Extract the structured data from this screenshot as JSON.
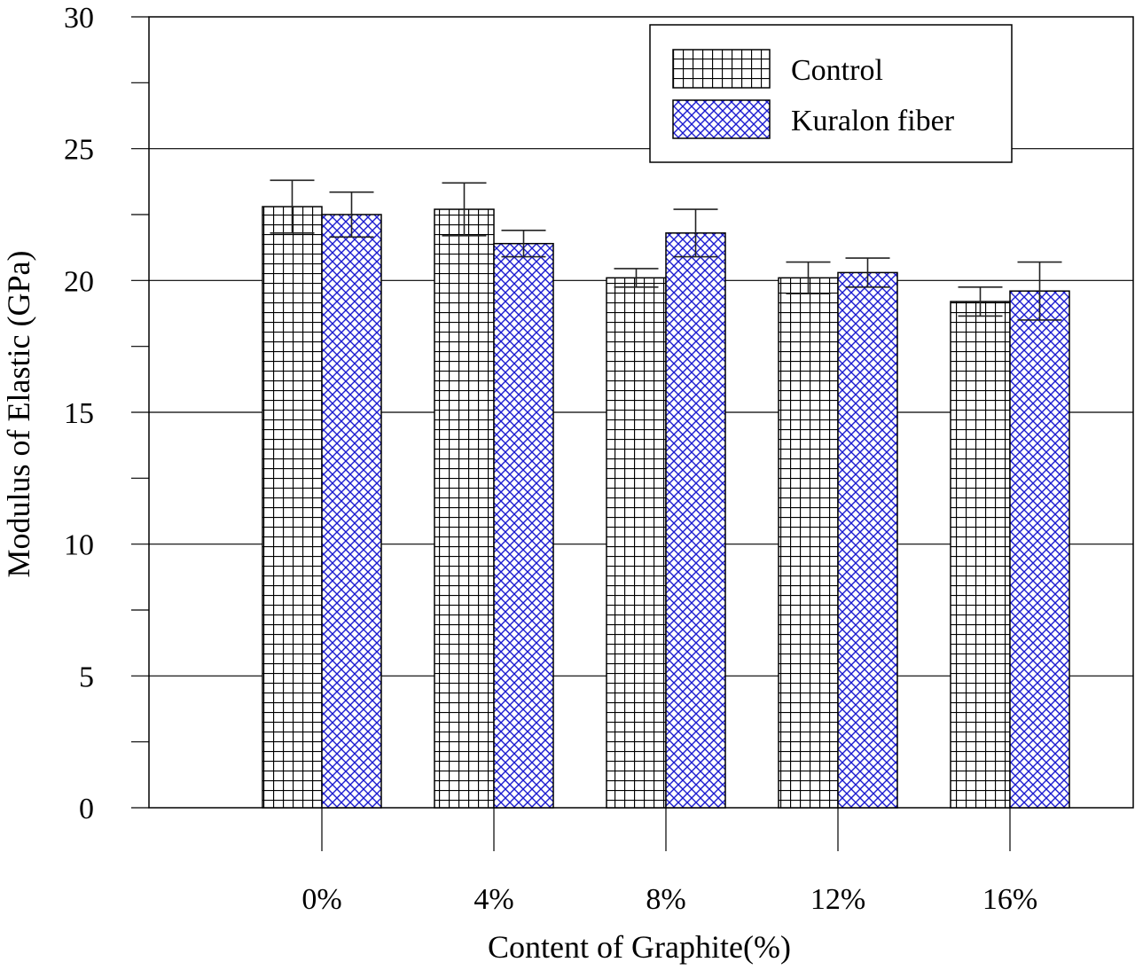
{
  "chart_data": {
    "type": "bar",
    "title": "",
    "xlabel": "Content of Graphite(%)",
    "ylabel": "Modulus of Elastic (GPa)",
    "categories": [
      "0%",
      "4%",
      "8%",
      "12%",
      "16%"
    ],
    "ylim": [
      0,
      30
    ],
    "yticks": [
      0,
      5,
      10,
      15,
      20,
      25,
      30
    ],
    "grid": true,
    "legend_position": "top-right",
    "series": [
      {
        "name": "Control",
        "pattern": "square-grid",
        "color": "#000000",
        "values": [
          22.8,
          22.7,
          20.1,
          20.1,
          19.2
        ],
        "errors": [
          1.0,
          1.0,
          0.35,
          0.6,
          0.55
        ]
      },
      {
        "name": "Kuralon fiber",
        "pattern": "diagonal-crosshatch",
        "color": "#0000cc",
        "values": [
          22.5,
          21.4,
          21.8,
          20.3,
          19.6
        ],
        "errors": [
          0.85,
          0.5,
          0.9,
          0.55,
          1.1
        ]
      }
    ]
  }
}
